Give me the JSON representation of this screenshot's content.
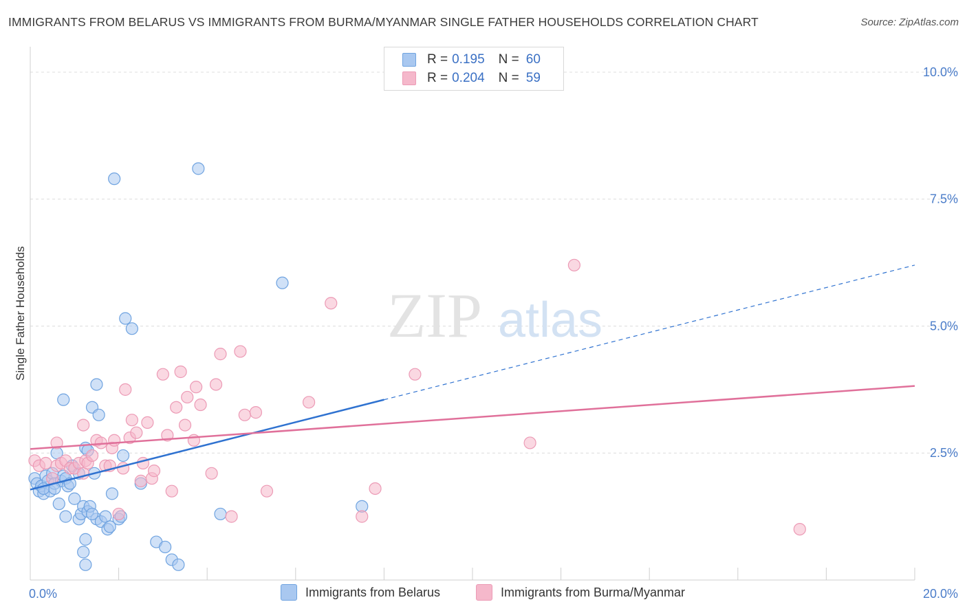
{
  "title": "IMMIGRANTS FROM BELARUS VS IMMIGRANTS FROM BURMA/MYANMAR SINGLE FATHER HOUSEHOLDS CORRELATION CHART",
  "source": "Source: ZipAtlas.com",
  "watermark": {
    "zip": "ZIP",
    "atlas": "atlas"
  },
  "legend": {
    "r_label": "R =",
    "n_label": "N =",
    "rows": [
      {
        "r": "0.195",
        "n": "60",
        "color": "#a9c8f0"
      },
      {
        "r": "0.204",
        "n": "59",
        "color": "#f5b8cb"
      }
    ]
  },
  "chart_data": {
    "type": "scatter",
    "title": "IMMIGRANTS FROM BELARUS VS IMMIGRANTS FROM BURMA/MYANMAR SINGLE FATHER HOUSEHOLDS CORRELATION CHART",
    "xlabel": "",
    "ylabel": "Single Father Households",
    "xlim": [
      0,
      20
    ],
    "ylim": [
      0,
      10.5
    ],
    "x_tick_labels": [
      "0.0%",
      "20.0%"
    ],
    "y_ticks": [
      2.5,
      5.0,
      7.5,
      10.0
    ],
    "y_tick_labels": [
      "2.5%",
      "5.0%",
      "7.5%",
      "10.0%"
    ],
    "grid": true,
    "legend_position": "top-center",
    "series": [
      {
        "name": "Immigrants from Belarus",
        "color": "#6fa3e0",
        "fill": "#a9c8f0",
        "trend": {
          "x0": 0,
          "y0": 1.78,
          "x1": 8.0,
          "y1": 3.55,
          "dashed_to_x": 20,
          "dashed_to_y": 6.2,
          "color": "#2f72d0"
        },
        "points": [
          [
            0.1,
            2.0
          ],
          [
            0.15,
            1.9
          ],
          [
            0.2,
            1.75
          ],
          [
            0.25,
            1.85
          ],
          [
            0.3,
            1.7
          ],
          [
            0.35,
            2.05
          ],
          [
            0.4,
            1.95
          ],
          [
            0.45,
            1.75
          ],
          [
            0.5,
            2.1
          ],
          [
            0.55,
            1.9
          ],
          [
            0.6,
            2.5
          ],
          [
            0.65,
            1.5
          ],
          [
            0.7,
            1.95
          ],
          [
            0.75,
            2.05
          ],
          [
            0.8,
            2.0
          ],
          [
            0.85,
            1.85
          ],
          [
            0.9,
            1.9
          ],
          [
            0.95,
            2.25
          ],
          [
            0.75,
            3.55
          ],
          [
            1.0,
            1.6
          ],
          [
            0.8,
            1.25
          ],
          [
            1.1,
            1.2
          ],
          [
            1.15,
            1.3
          ],
          [
            1.2,
            1.45
          ],
          [
            1.25,
            2.6
          ],
          [
            1.3,
            2.55
          ],
          [
            1.3,
            1.35
          ],
          [
            1.1,
            2.1
          ],
          [
            1.25,
            0.8
          ],
          [
            1.2,
            0.55
          ],
          [
            1.25,
            0.3
          ],
          [
            1.35,
            1.45
          ],
          [
            1.4,
            3.4
          ],
          [
            1.5,
            3.85
          ],
          [
            1.5,
            1.2
          ],
          [
            1.6,
            1.15
          ],
          [
            1.55,
            3.25
          ],
          [
            1.7,
            1.25
          ],
          [
            1.75,
            1.0
          ],
          [
            1.8,
            1.05
          ],
          [
            1.85,
            1.7
          ],
          [
            1.9,
            7.9
          ],
          [
            2.0,
            1.2
          ],
          [
            2.05,
            1.25
          ],
          [
            2.1,
            2.45
          ],
          [
            2.15,
            5.15
          ],
          [
            2.3,
            4.95
          ],
          [
            2.5,
            1.9
          ],
          [
            2.85,
            0.75
          ],
          [
            3.05,
            0.65
          ],
          [
            3.2,
            0.4
          ],
          [
            3.35,
            0.3
          ],
          [
            3.8,
            8.1
          ],
          [
            4.3,
            1.3
          ],
          [
            5.7,
            5.85
          ],
          [
            7.5,
            1.45
          ],
          [
            0.3,
            1.8
          ],
          [
            0.55,
            1.8
          ],
          [
            1.4,
            1.3
          ],
          [
            1.45,
            2.1
          ]
        ]
      },
      {
        "name": "Immigrants from Burma/Myanmar",
        "color": "#ec9ab5",
        "fill": "#f5b8cb",
        "trend": {
          "x0": 0,
          "y0": 2.58,
          "x1": 20,
          "y1": 3.82,
          "color": "#e0709a"
        },
        "points": [
          [
            0.1,
            2.35
          ],
          [
            0.2,
            2.25
          ],
          [
            0.35,
            2.3
          ],
          [
            0.5,
            2.0
          ],
          [
            0.6,
            2.25
          ],
          [
            0.7,
            2.3
          ],
          [
            0.8,
            2.35
          ],
          [
            0.9,
            2.2
          ],
          [
            1.0,
            2.2
          ],
          [
            1.1,
            2.3
          ],
          [
            1.2,
            2.1
          ],
          [
            1.25,
            2.35
          ],
          [
            1.3,
            2.3
          ],
          [
            1.4,
            2.45
          ],
          [
            1.5,
            2.75
          ],
          [
            1.6,
            2.7
          ],
          [
            1.7,
            2.25
          ],
          [
            1.8,
            2.25
          ],
          [
            1.85,
            2.6
          ],
          [
            1.9,
            2.75
          ],
          [
            2.0,
            1.3
          ],
          [
            2.1,
            2.2
          ],
          [
            2.15,
            3.75
          ],
          [
            2.25,
            2.8
          ],
          [
            2.3,
            3.15
          ],
          [
            2.4,
            2.9
          ],
          [
            2.5,
            1.95
          ],
          [
            2.55,
            2.3
          ],
          [
            2.65,
            3.1
          ],
          [
            2.75,
            2.0
          ],
          [
            2.8,
            2.15
          ],
          [
            3.0,
            4.05
          ],
          [
            3.1,
            2.85
          ],
          [
            3.2,
            1.75
          ],
          [
            3.3,
            3.4
          ],
          [
            3.4,
            4.1
          ],
          [
            3.5,
            3.05
          ],
          [
            3.55,
            3.6
          ],
          [
            3.7,
            2.75
          ],
          [
            3.75,
            3.8
          ],
          [
            3.85,
            3.45
          ],
          [
            4.1,
            2.1
          ],
          [
            4.2,
            3.85
          ],
          [
            4.3,
            4.45
          ],
          [
            4.55,
            1.25
          ],
          [
            4.75,
            4.5
          ],
          [
            4.85,
            3.25
          ],
          [
            5.1,
            3.3
          ],
          [
            5.35,
            1.75
          ],
          [
            6.3,
            3.5
          ],
          [
            6.8,
            5.45
          ],
          [
            7.5,
            1.25
          ],
          [
            7.8,
            1.8
          ],
          [
            8.7,
            4.05
          ],
          [
            11.3,
            2.7
          ],
          [
            12.3,
            6.2
          ],
          [
            17.4,
            1.0
          ],
          [
            1.2,
            3.05
          ],
          [
            0.6,
            2.7
          ]
        ]
      }
    ]
  }
}
